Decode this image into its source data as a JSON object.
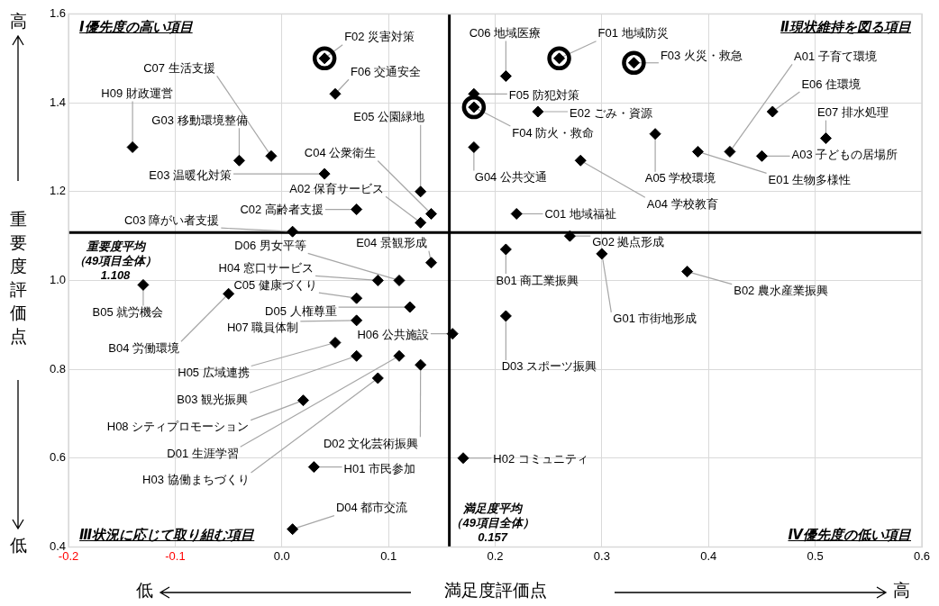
{
  "chart_data": {
    "type": "scatter",
    "xlabel": "満足度評価点",
    "ylabel": "重要度評価点",
    "xlim": [
      -0.2,
      0.6
    ],
    "xticks": [
      -0.2,
      -0.1,
      {
        "value": 0,
        "label": "0.0"
      },
      0.1,
      0.2,
      0.3,
      0.4,
      0.5,
      0.6
    ],
    "ylim": [
      0.4,
      1.6
    ],
    "yticks": [
      0.4,
      0.6,
      0.8,
      {
        "value": 1,
        "label": "1.0"
      },
      1.2,
      1.4,
      1.6
    ],
    "grid": true,
    "legend": false,
    "series": [
      {
        "color": "#000000",
        "marker": "diamond",
        "x": [
          0.42,
          0.13,
          0.45,
          0.28,
          0.35,
          0.21,
          0.38,
          0.07,
          -0.05,
          -0.13,
          0.22,
          0.07,
          0.01,
          0.14,
          0.07,
          0.21,
          -0.01,
          0.11,
          0.13,
          0.21,
          0.01,
          0.12,
          0.11,
          0.39,
          0.24,
          0.04,
          0.14,
          0.13,
          0.46,
          0.51,
          0.26,
          0.04,
          0.33,
          0.18,
          0.18,
          0.05,
          0.3,
          0.27,
          -0.04,
          0.18,
          0.03,
          0.17,
          0.09,
          0.09,
          0.05,
          0.16,
          0.07,
          0.02,
          -0.14
        ],
        "values": [
          1.29,
          1.13,
          1.28,
          1.27,
          1.33,
          1.07,
          1.02,
          0.83,
          0.97,
          0.99,
          1.15,
          1.16,
          1.11,
          1.15,
          0.96,
          1.46,
          1.28,
          0.83,
          0.81,
          0.92,
          0.44,
          0.94,
          1.0,
          1.29,
          1.38,
          1.24,
          1.04,
          1.2,
          1.38,
          1.32,
          1.5,
          1.5,
          1.49,
          1.39,
          1.42,
          1.42,
          1.06,
          1.1,
          1.27,
          1.3,
          0.58,
          0.6,
          0.78,
          1.0,
          0.86,
          0.88,
          0.91,
          0.73,
          1.3
        ],
        "value_labels": [
          "A01 子育て環境",
          "A02 保育サービス",
          "A03 子どもの居場所",
          "A04 学校教育",
          "A05 学校環境",
          "B01 商工業振興",
          "B02 農水産業振興",
          "B03 観光振興",
          "B04 労働環境",
          "B05 就労機会",
          "C01 地域福祉",
          "C02 高齢者支援",
          "C03 障がい者支援",
          "C04 公衆衛生",
          "C05 健康づくり",
          "C06 地域医療",
          "C07 生活支援",
          "D01 生涯学習",
          "D02 文化芸術振興",
          "D03 スポーツ振興",
          "D04 都市交流",
          "D05 人権尊重",
          "D06 男女平等",
          "E01 生物多様性",
          "E02 ごみ・資源",
          "E03 温暖化対策",
          "E04 景観形成",
          "E05 公園緑地",
          "E06 住環境",
          "E07 排水処理",
          "F01 地域防災",
          "F02 災害対策",
          "F03 火災・救急",
          "F04 防火・救命",
          "F05 防犯対策",
          "F06 交通安全",
          "G01 市街地形成",
          "G02 拠点形成",
          "G03 移動環境整備",
          "G04 公共交通",
          "H01 市民参加",
          "H02 コミュニティ",
          "H03 協働まちづくり",
          "H04 窓口サービス",
          "H05 広域連携",
          "H06 公共施設",
          "H07 職員体制",
          "H08 シティプロモーション",
          "H09 財政運営"
        ]
      },
      {
        "color": "#000000",
        "marker": "circle",
        "x": [
          0.26,
          0.04,
          0.33,
          0.18
        ],
        "values": [
          1.5,
          1.5,
          1.49,
          1.39
        ]
      }
    ],
    "ref_lines": [
      {
        "axis": "x",
        "value": 0.157,
        "label": "満足度平均（49項目全体）0.157"
      },
      {
        "axis": "y",
        "value": 1.108,
        "label": "重要度平均（49項目全体）1.108"
      }
    ],
    "annotations": [
      "Ⅰ優先度の高い項目",
      "Ⅱ現状維持を図る項目",
      "Ⅲ状況に応じて取り組む項目",
      "Ⅳ優先度の低い項目",
      "高",
      "低",
      "低",
      "高"
    ]
  }
}
